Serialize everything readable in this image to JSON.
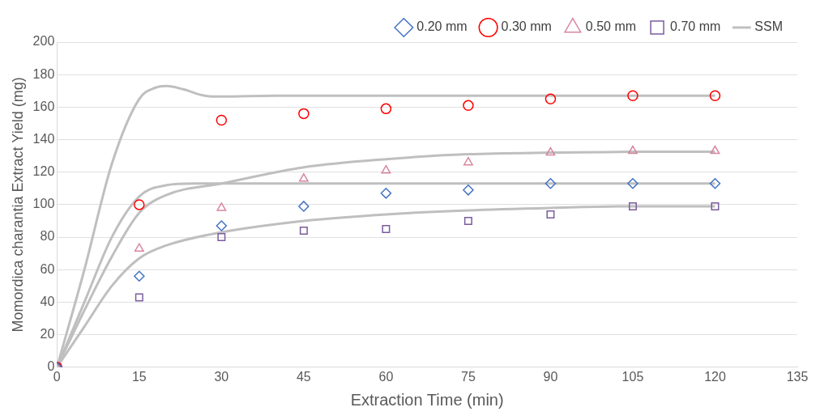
{
  "chart_data": {
    "type": "scatter",
    "xlabel": "Extraction Time (min)",
    "ylabel": "Momordica charantia Extract Yield (mg)",
    "xlim": [
      0,
      135
    ],
    "xticks": [
      0,
      15,
      30,
      45,
      60,
      75,
      90,
      105,
      120,
      135
    ],
    "ylim": [
      0,
      200
    ],
    "yticks": [
      0,
      20,
      40,
      60,
      80,
      100,
      120,
      140,
      160,
      180,
      200
    ],
    "grid": "y",
    "legend": "top right",
    "series": [
      {
        "name": "0.20 mm",
        "color": "#4472c4",
        "marker": "diamond",
        "x": [
          0,
          15,
          30,
          45,
          60,
          75,
          90,
          105,
          120
        ],
        "values": [
          0,
          56,
          87,
          99,
          107,
          109,
          113,
          113,
          113
        ]
      },
      {
        "name": "0.30 mm",
        "color": "#ff0000",
        "marker": "circle",
        "x": [
          0,
          15,
          30,
          45,
          60,
          75,
          90,
          105,
          120
        ],
        "values": [
          0,
          100,
          152,
          156,
          159,
          161,
          165,
          167,
          167
        ]
      },
      {
        "name": "0.50 mm",
        "color": "#d7869d",
        "marker": "triangle",
        "x": [
          0,
          15,
          30,
          45,
          60,
          75,
          90,
          105,
          120
        ],
        "values": [
          0,
          73,
          98,
          116,
          121,
          126,
          132,
          133,
          133
        ]
      },
      {
        "name": "0.70 mm",
        "color": "#7b5c9e",
        "marker": "square",
        "x": [
          0,
          15,
          30,
          45,
          60,
          75,
          90,
          105,
          120
        ],
        "values": [
          0,
          43,
          80,
          84,
          85,
          90,
          94,
          99,
          99
        ]
      },
      {
        "name": "SSM",
        "type": "line",
        "color": "#bfbfbf",
        "marker": "none",
        "x": [
          0,
          5,
          10,
          15,
          18,
          20,
          23,
          27,
          30,
          40,
          60,
          90,
          120
        ],
        "values": [
          0,
          60,
          125,
          165,
          172,
          173,
          171,
          167,
          166.5,
          167,
          167,
          167,
          167
        ]
      },
      {
        "type": "line",
        "color": "#bfbfbf",
        "marker": "none",
        "x": [
          0,
          5,
          10,
          15,
          20,
          25,
          30,
          60,
          90,
          120
        ],
        "values": [
          0,
          40,
          80,
          105,
          112,
          113,
          113,
          113,
          113,
          113
        ]
      },
      {
        "type": "line",
        "color": "#bfbfbf",
        "marker": "none",
        "x": [
          0,
          5,
          10,
          15,
          20,
          30,
          45,
          60,
          75,
          90,
          105,
          120
        ],
        "values": [
          0,
          35,
          68,
          95,
          106,
          113,
          123,
          128,
          131,
          132,
          132.5,
          132.5
        ]
      },
      {
        "type": "line",
        "color": "#bfbfbf",
        "marker": "none",
        "x": [
          0,
          5,
          10,
          15,
          20,
          30,
          45,
          60,
          75,
          90,
          105,
          120
        ],
        "values": [
          0,
          25,
          50,
          67,
          75,
          83,
          90,
          94,
          96.5,
          98,
          99,
          99
        ]
      }
    ]
  }
}
